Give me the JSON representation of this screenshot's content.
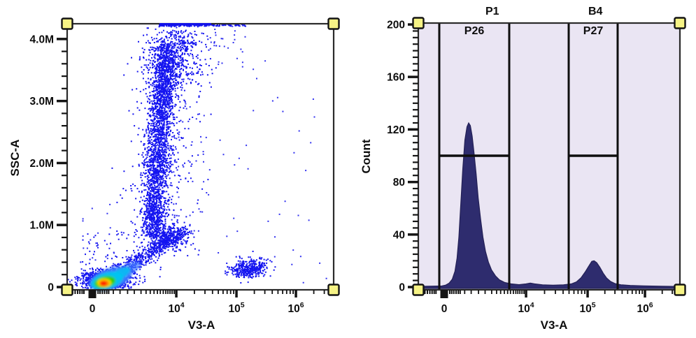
{
  "figure": {
    "description": "Flow cytometry two-panel figure: pseudocolor density dot plot (SSC-A vs V3-A) and gated count histogram (Count vs V3-A)",
    "background": "#ffffff"
  },
  "colors": {
    "frame": "#2a2a2a",
    "tick": "#141414",
    "text": "#0d0d0d",
    "handle_fill": "#f6f385",
    "handle_stroke": "#141414",
    "hist_fill": "#2e2c6e",
    "hist_stroke": "#232055",
    "hist_bg": "#eae5f3",
    "gate_line": "#0e0e0e",
    "dot_blue": "#1414f0",
    "dot_blue_sparse": "#3232f0",
    "overflow_line": "#1111e6"
  },
  "chart_data": [
    {
      "type": "scatter",
      "style": "pseudocolor-density-dot-plot",
      "xlabel": "V3-A",
      "ylabel": "SSC-A",
      "x_axis": {
        "scale": "biexponential",
        "tick_labels": [
          "0",
          "10^4",
          "10^5",
          "10^6"
        ]
      },
      "y_axis": {
        "scale": "linear",
        "tick_labels": [
          "0",
          "1.0M",
          "2.0M",
          "3.0M",
          "4.0M"
        ],
        "major_step": 1000000,
        "minor_step": 200000,
        "max_shown": 4300000
      },
      "overflow_line": {
        "u1": 0.3465,
        "u2": 0.541,
        "note": "events pinned at SSC-A top of scale"
      },
      "populations": [
        {
          "name": "main-core-halo",
          "approx": "V3-A ~0-500, SSC ~0.05-0.2M",
          "type": "gauss",
          "n": 1000,
          "cu": 0.147,
          "cv": 0.9633,
          "su": 0.0446,
          "sv": 0.021,
          "color": "dot_blue"
        },
        {
          "name": "main-core-tight",
          "approx": "V3-A ~100, SSC ~0.1M",
          "type": "gauss",
          "n": 600,
          "cu": 0.1417,
          "cv": 0.9711,
          "su": 0.0236,
          "sv": 0.0131,
          "color": "dot_blue"
        },
        {
          "name": "diagonal-smear",
          "approx": "rising from core to ~2×10^3 / 0.9M",
          "type": "line",
          "n": 550,
          "u1": 0.168,
          "v1": 0.9501,
          "u2": 0.4357,
          "v2": 0.7769,
          "s": 0.021,
          "color": "dot_blue"
        },
        {
          "name": "smear-blob",
          "approx": "~3×10^3 / 0.8M",
          "type": "gauss",
          "n": 320,
          "cu": 0.3858,
          "cv": 0.8031,
          "su": 0.0341,
          "sv": 0.0236,
          "color": "dot_blue"
        },
        {
          "name": "high-ssc-plume",
          "approx": "V3-A ~1-6×10^3, SSC 1.3-4.2M",
          "type": "line",
          "n": 2400,
          "u1": 0.3228,
          "v1": 0.7979,
          "u2": 0.3701,
          "v2": 0.0735,
          "s": 0.0236,
          "color": "dot_blue"
        },
        {
          "name": "plume-upper-spread",
          "approx": "top of plume near 4M",
          "type": "gauss",
          "n": 330,
          "cu": 0.4042,
          "cv": 0.1207,
          "su": 0.0577,
          "sv": 0.0682,
          "color": "dot_blue"
        },
        {
          "name": "plume-halo",
          "approx": "sparse flankers of plume",
          "type": "line",
          "n": 420,
          "u1": 0.3202,
          "v1": 0.8031,
          "u2": 0.378,
          "v2": 0.0682,
          "s": 0.0682,
          "color": "dot_blue"
        },
        {
          "name": "top-clipped-band",
          "approx": "events at SSC max",
          "type": "band",
          "n": 230,
          "u1": 0.3465,
          "u2": 0.6719,
          "v1": 0.0,
          "v2": 0.0092,
          "bias": 1.7,
          "color": "dot_blue"
        },
        {
          "name": "under-top-scatter",
          "approx": "~10^4 / 3.5-4.2M",
          "type": "gauss",
          "n": 170,
          "cu": 0.4094,
          "cv": 0.1417,
          "su": 0.0446,
          "sv": 0.0892,
          "color": "dot_blue"
        },
        {
          "name": "top-right-sparse",
          "type": "uniform",
          "n": 26,
          "u1": 0.5302,
          "u2": 0.6719,
          "v1": 0.0052,
          "v2": 0.1522,
          "color": "dot_blue_sparse"
        },
        {
          "name": "positive-cluster-1e5",
          "approx": "V3-A ~1-2.5×10^5, SSC 0.2-0.45M",
          "type": "gauss",
          "n": 300,
          "cu": 0.6719,
          "cv": 0.9239,
          "su": 0.0315,
          "sv": 0.0171,
          "color": "dot_blue"
        },
        {
          "name": "positive-cluster-tail",
          "type": "gauss",
          "n": 70,
          "cu": 0.7165,
          "cv": 0.9029,
          "su": 0.0289,
          "sv": 0.0157,
          "color": "dot_blue"
        },
        {
          "name": "sparse-mid",
          "type": "uniform",
          "n": 55,
          "u1": 0.3727,
          "u2": 0.5354,
          "v1": 0.2782,
          "v2": 0.8031,
          "color": "dot_blue_sparse"
        },
        {
          "name": "sparse-right",
          "type": "uniform",
          "n": 42,
          "u1": 0.5354,
          "u2": 0.9869,
          "v1": 0.0682,
          "v2": 0.9738,
          "color": "dot_blue_sparse"
        },
        {
          "name": "sparse-low-left",
          "type": "uniform",
          "n": 90,
          "u1": 0.0577,
          "u2": 0.3648,
          "v1": 0.7769,
          "v2": 0.9816,
          "color": "dot_blue"
        },
        {
          "name": "sparse-left-col",
          "type": "uniform",
          "n": 20,
          "u1": 0.0577,
          "u2": 0.2073,
          "v1": 0.6719,
          "v2": 0.9213,
          "color": "dot_blue_sparse"
        }
      ],
      "density_layers": [
        {
          "name": "lightblue-outer",
          "cu": 0.1627,
          "cv": 0.958,
          "ru": 0.084,
          "rv": 0.0394,
          "rot": -18,
          "color": "#3f7bff",
          "opacity": 0.9
        },
        {
          "name": "lightblue-tail",
          "cu": 0.2336,
          "cv": 0.9213,
          "ru": 0.0472,
          "rv": 0.021,
          "rot": -28,
          "color": "#3f7bff",
          "opacity": 0.7
        },
        {
          "name": "cyan-ring",
          "cu": 0.1496,
          "cv": 0.9659,
          "ru": 0.063,
          "rv": 0.0315,
          "rot": -16,
          "color": "#00c4f0",
          "opacity": 0.95
        },
        {
          "name": "cyan-tail",
          "cu": 0.1995,
          "cv": 0.9397,
          "ru": 0.042,
          "rv": 0.0184,
          "rot": -28,
          "color": "#00c4f0",
          "opacity": 0.8
        },
        {
          "name": "green-ring",
          "cu": 0.1417,
          "cv": 0.9711,
          "ru": 0.0407,
          "rv": 0.0223,
          "rot": -12,
          "color": "#2ecc00",
          "opacity": 1
        },
        {
          "name": "yellow-ring",
          "cu": 0.1391,
          "cv": 0.9738,
          "ru": 0.0262,
          "rv": 0.0157,
          "rot": 0,
          "color": "#ffe000",
          "opacity": 1
        },
        {
          "name": "orange-ring",
          "cu": 0.1391,
          "cv": 0.9751,
          "ru": 0.0197,
          "rv": 0.0123,
          "rot": 0,
          "color": "#ff9000",
          "opacity": 1
        },
        {
          "name": "red-core",
          "cu": 0.1365,
          "cv": 0.9764,
          "ru": 0.0136,
          "rv": 0.0089,
          "rot": 0,
          "color": "#ff1e00",
          "opacity": 1
        }
      ]
    },
    {
      "type": "histogram",
      "xlabel": "V3-A",
      "ylabel": "Count",
      "x_axis": {
        "scale": "biexponential",
        "tick_labels": [
          "0",
          "10^4",
          "10^5",
          "10^6"
        ]
      },
      "y_axis": {
        "scale": "linear",
        "tick_labels": [
          "0",
          "40",
          "80",
          "120",
          "160",
          "200"
        ],
        "major_step": 40,
        "minor_step": 5,
        "max": 200
      },
      "plot_bg": "#eae5f3",
      "series_fill": "#2e2c6e",
      "peaks": [
        {
          "name": "negative-peak",
          "approx_center": "~2×10^3 V3-A",
          "height_count": 125
        },
        {
          "name": "positive-peak",
          "approx_center": "~1.3×10^5 V3-A",
          "height_count": 20
        }
      ],
      "gates": [
        {
          "title": "P1",
          "region_label": "P26",
          "u_from": 0.0802,
          "u_to": 0.3476,
          "crossbar_count": 100,
          "title_u": 0.283
        },
        {
          "title": "B4",
          "region_label": "P27",
          "u_from": 0.5749,
          "u_to": 0.762,
          "crossbar_count": 100,
          "title_u": 0.677
        }
      ],
      "curve_points": [
        [
          0,
          0.5
        ],
        [
          0.09,
          0.8
        ],
        [
          0.105,
          1.5
        ],
        [
          0.118,
          3
        ],
        [
          0.13,
          6
        ],
        [
          0.14,
          12
        ],
        [
          0.148,
          22
        ],
        [
          0.155,
          38
        ],
        [
          0.162,
          62
        ],
        [
          0.17,
          90
        ],
        [
          0.178,
          112
        ],
        [
          0.186,
          122
        ],
        [
          0.1925,
          125
        ],
        [
          0.199,
          123
        ],
        [
          0.206,
          115
        ],
        [
          0.213,
          102
        ],
        [
          0.221,
          86
        ],
        [
          0.229,
          68
        ],
        [
          0.238,
          52
        ],
        [
          0.247,
          38
        ],
        [
          0.257,
          27
        ],
        [
          0.268,
          19
        ],
        [
          0.28,
          13
        ],
        [
          0.295,
          8.5
        ],
        [
          0.31,
          5.5
        ],
        [
          0.33,
          3.5
        ],
        [
          0.355,
          2.4
        ],
        [
          0.385,
          1.8
        ],
        [
          0.412,
          2.4
        ],
        [
          0.428,
          3.0
        ],
        [
          0.445,
          2.4
        ],
        [
          0.475,
          1.7
        ],
        [
          0.515,
          1.4
        ],
        [
          0.555,
          1.7
        ],
        [
          0.585,
          2.4
        ],
        [
          0.605,
          4
        ],
        [
          0.622,
          7
        ],
        [
          0.638,
          11.5
        ],
        [
          0.652,
          16
        ],
        [
          0.663,
          19.5
        ],
        [
          0.672,
          20
        ],
        [
          0.682,
          18.5
        ],
        [
          0.694,
          15
        ],
        [
          0.707,
          10.5
        ],
        [
          0.72,
          6.8
        ],
        [
          0.735,
          4.2
        ],
        [
          0.752,
          2.6
        ],
        [
          0.775,
          1.7
        ],
        [
          0.81,
          1.2
        ],
        [
          0.86,
          0.9
        ],
        [
          0.93,
          0.6
        ],
        [
          1,
          0.4
        ]
      ]
    }
  ]
}
